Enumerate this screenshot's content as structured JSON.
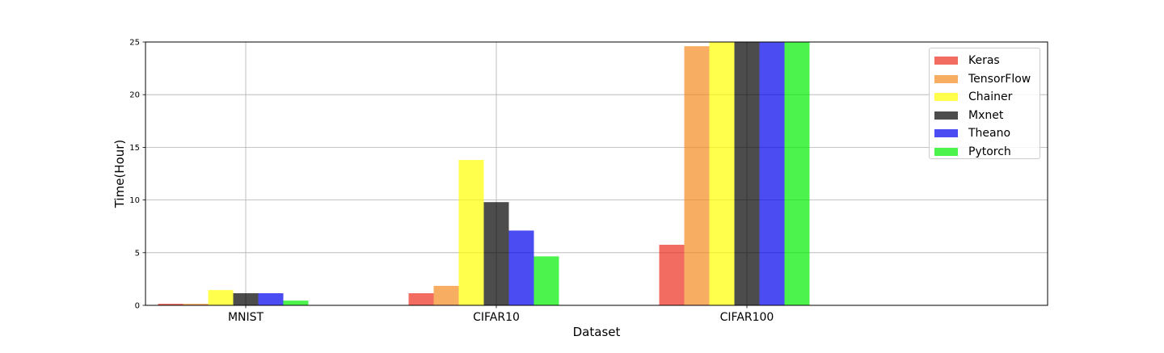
{
  "chart_data": {
    "type": "bar",
    "title": "",
    "xlabel": "Dataset",
    "ylabel": "Time(Hour)",
    "categories": [
      "MNIST",
      "CIFAR10",
      "CIFAR100"
    ],
    "ylim": [
      0,
      25
    ],
    "yticks": [
      "0",
      "5",
      "10",
      "15",
      "20",
      "25"
    ],
    "grid": true,
    "legend_position": "top-right",
    "series": [
      {
        "name": "Keras",
        "color": "#ed2e1e",
        "values": [
          0.15,
          1.15,
          5.75
        ]
      },
      {
        "name": "TensorFlow",
        "color": "#f58b1f",
        "values": [
          0.15,
          1.85,
          24.6
        ]
      },
      {
        "name": "Chainer",
        "color": "#ffff00",
        "values": [
          1.45,
          13.8,
          25
        ]
      },
      {
        "name": "Mxnet",
        "color": "#000000",
        "values": [
          1.15,
          9.8,
          25
        ]
      },
      {
        "name": "Theano",
        "color": "#0000ee",
        "values": [
          1.15,
          7.1,
          25
        ]
      },
      {
        "name": "Pytorch",
        "color": "#00ee00",
        "values": [
          0.45,
          4.65,
          25
        ]
      }
    ]
  }
}
